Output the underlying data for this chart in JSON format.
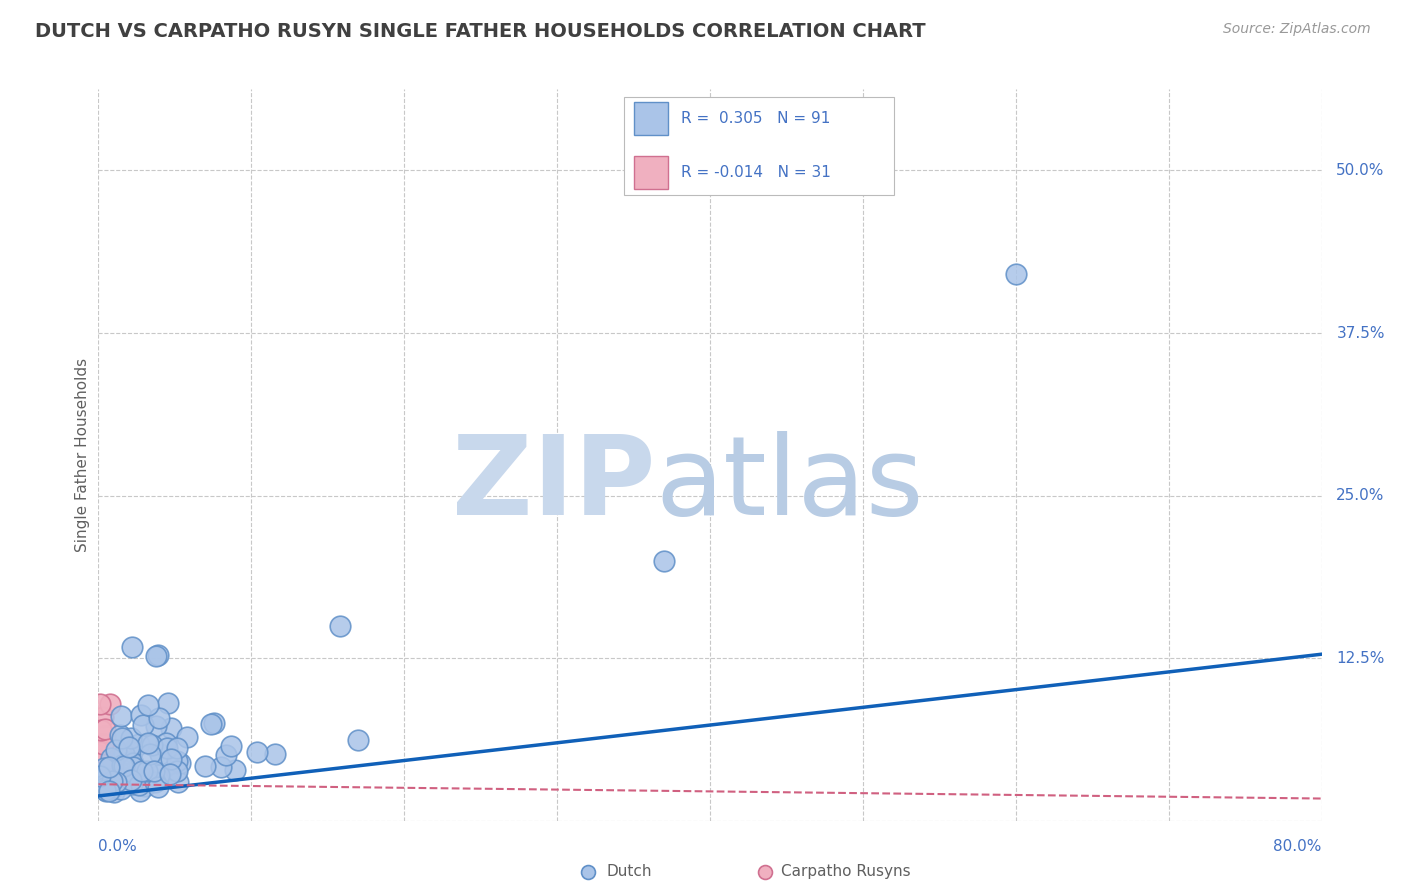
{
  "title": "DUTCH VS CARPATHO RUSYN SINGLE FATHER HOUSEHOLDS CORRELATION CHART",
  "source": "Source: ZipAtlas.com",
  "ylabel": "Single Father Households",
  "xlim": [
    0,
    0.8
  ],
  "ylim": [
    0,
    0.5625
  ],
  "yticks": [
    0.0,
    0.125,
    0.25,
    0.375,
    0.5
  ],
  "yticklabels": [
    "",
    "12.5%",
    "25.0%",
    "37.5%",
    "50.0%"
  ],
  "xtick_left": "0.0%",
  "xtick_right": "80.0%",
  "grid_color": "#c8c8c8",
  "background_color": "#ffffff",
  "dutch_color": "#aac4e8",
  "dutch_edge_color": "#6090c8",
  "carpatho_color": "#f0b0c0",
  "carpatho_edge_color": "#d07090",
  "dutch_line_color": "#1060b8",
  "carpatho_line_color": "#d06080",
  "title_color": "#404040",
  "axis_label_color": "#606060",
  "tick_label_color": "#4472c4",
  "legend_R_color": "#4472c4",
  "watermark_zip_color": "#c8d8ec",
  "watermark_atlas_color": "#b8cce4",
  "R_dutch": 0.305,
  "N_dutch": 91,
  "R_carpatho": -0.014,
  "N_carpatho": 31,
  "dutch_line_x0": 0.0,
  "dutch_line_y0": 0.019,
  "dutch_line_x1": 0.8,
  "dutch_line_y1": 0.128,
  "carpatho_line_x0": 0.0,
  "carpatho_line_y0": 0.028,
  "carpatho_line_x1": 0.8,
  "carpatho_line_y1": 0.017
}
